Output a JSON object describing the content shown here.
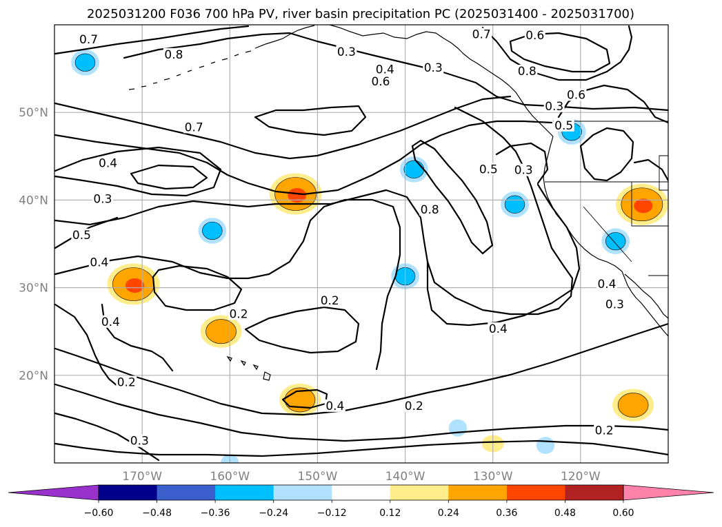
{
  "chart_data": {
    "type": "contour map",
    "title": "2025031200 F036 700 hPa PV, river basin precipitation PC (2025031400 - 2025031700)",
    "x_axis": {
      "unit": "longitude",
      "ticks": [
        -170,
        -160,
        -150,
        -140,
        -130,
        -120
      ],
      "tick_labels": [
        "170°W",
        "160°W",
        "150°W",
        "140°W",
        "130°W",
        "120°W"
      ],
      "range": [
        -180,
        -110
      ]
    },
    "y_axis": {
      "unit": "latitude",
      "ticks": [
        20,
        30,
        40,
        50
      ],
      "tick_labels": [
        "20°N",
        "30°N",
        "40°N",
        "50°N"
      ],
      "range": [
        10,
        60
      ]
    },
    "grid": true,
    "contour_levels": [
      0.2,
      0.3,
      0.4,
      0.5,
      0.6,
      0.7,
      0.8
    ],
    "contour_labels": [
      {
        "text": "0.7",
        "lon": -176.1,
        "lat": 58.1
      },
      {
        "text": "0.8",
        "lon": -166.4,
        "lat": 56.4
      },
      {
        "text": "0.3",
        "lon": -146.7,
        "lat": 56.7
      },
      {
        "text": "0.6",
        "lon": -142.8,
        "lat": 53.3
      },
      {
        "text": "0.4",
        "lon": -142.3,
        "lat": 54.7
      },
      {
        "text": "0.3",
        "lon": -136.8,
        "lat": 54.9
      },
      {
        "text": "0.7",
        "lon": -131.3,
        "lat": 58.7
      },
      {
        "text": "0.6",
        "lon": -125.2,
        "lat": 58.6
      },
      {
        "text": "0.8",
        "lon": -126.1,
        "lat": 54.5
      },
      {
        "text": "0.6",
        "lon": -120.5,
        "lat": 51.8
      },
      {
        "text": "0.5",
        "lon": -121.9,
        "lat": 48.3
      },
      {
        "text": "0.3",
        "lon": -123.0,
        "lat": 50.5
      },
      {
        "text": "0.7",
        "lon": -164.1,
        "lat": 48.1
      },
      {
        "text": "0.4",
        "lon": -173.9,
        "lat": 44.0
      },
      {
        "text": "0.3",
        "lon": -174.5,
        "lat": 39.9
      },
      {
        "text": "0.5",
        "lon": -176.9,
        "lat": 35.8
      },
      {
        "text": "0.4",
        "lon": -174.9,
        "lat": 32.7
      },
      {
        "text": "0.2",
        "lon": -171.8,
        "lat": 19.0
      },
      {
        "text": "0.4",
        "lon": -173.6,
        "lat": 25.9
      },
      {
        "text": "0.2",
        "lon": -159.0,
        "lat": 26.8
      },
      {
        "text": "0.2",
        "lon": -148.6,
        "lat": 28.3
      },
      {
        "text": "0.5",
        "lon": -130.5,
        "lat": 43.3
      },
      {
        "text": "0.3",
        "lon": -126.5,
        "lat": 43.2
      },
      {
        "text": "0.8",
        "lon": -137.2,
        "lat": 38.7
      },
      {
        "text": "0.4",
        "lon": -117.0,
        "lat": 30.2
      },
      {
        "text": "0.3",
        "lon": -116.1,
        "lat": 27.9
      },
      {
        "text": "0.4",
        "lon": -129.4,
        "lat": 25.1
      },
      {
        "text": "0.4",
        "lon": -148.0,
        "lat": 16.3
      },
      {
        "text": "0.2",
        "lon": -139.0,
        "lat": 16.3
      },
      {
        "text": "0.2",
        "lon": -117.3,
        "lat": 13.5
      },
      {
        "text": "0.3",
        "lon": -170.3,
        "lat": 12.3
      }
    ],
    "shaded_regions": [
      {
        "sign": "positive",
        "peak": "0.36-0.48",
        "lon": -152.5,
        "lat": 40.7
      },
      {
        "sign": "positive",
        "peak": "0.36-0.48",
        "lon": -113.0,
        "lat": 39.5
      },
      {
        "sign": "positive",
        "peak": "0.36-0.48",
        "lon": -171.0,
        "lat": 30.4
      },
      {
        "sign": "positive",
        "peak": "0.24-0.36",
        "lon": -161.0,
        "lat": 25.0
      },
      {
        "sign": "positive",
        "peak": "0.24-0.36",
        "lon": -152.0,
        "lat": 17.2
      },
      {
        "sign": "positive",
        "peak": "0.24-0.36",
        "lon": -114.0,
        "lat": 16.6
      },
      {
        "sign": "positive",
        "peak": "0.12-0.24",
        "lon": -130.0,
        "lat": 12.2
      },
      {
        "sign": "negative",
        "peak": "-0.36--0.24",
        "lon": -162.0,
        "lat": 36.5
      },
      {
        "sign": "negative",
        "peak": "-0.36--0.24",
        "lon": -176.5,
        "lat": 55.7
      },
      {
        "sign": "negative",
        "peak": "-0.36--0.24",
        "lon": -139.0,
        "lat": 43.5
      },
      {
        "sign": "negative",
        "peak": "-0.36--0.24",
        "lon": -127.5,
        "lat": 39.5
      },
      {
        "sign": "negative",
        "peak": "-0.36--0.24",
        "lon": -140.0,
        "lat": 31.3
      },
      {
        "sign": "negative",
        "peak": "-0.36--0.24",
        "lon": -121.0,
        "lat": 47.8
      },
      {
        "sign": "negative",
        "peak": "-0.36--0.24",
        "lon": -116.0,
        "lat": 35.3
      },
      {
        "sign": "negative",
        "peak": "-0.24--0.12",
        "lon": -134.0,
        "lat": 14.0
      },
      {
        "sign": "negative",
        "peak": "-0.24--0.12",
        "lon": -124.0,
        "lat": 12.0
      },
      {
        "sign": "negative",
        "peak": "-0.24--0.12",
        "lon": -160.0,
        "lat": 10.0
      }
    ],
    "colorbar": {
      "orientation": "horizontal",
      "extend": "both",
      "boundaries": [
        -0.6,
        -0.48,
        -0.36,
        -0.24,
        -0.12,
        0.12,
        0.24,
        0.36,
        0.48,
        0.6
      ],
      "tick_labels": [
        "−0.60",
        "−0.48",
        "−0.36",
        "−0.24",
        "−0.12",
        "0.12",
        "0.24",
        "0.36",
        "0.48",
        "0.60"
      ],
      "colors": [
        "#9932cc",
        "#00008b",
        "#3a5fcd",
        "#00bfff",
        "#b0e2ff",
        "#ffffff",
        "#ffec8b",
        "#ffa500",
        "#ff4500",
        "#b22222",
        "#ff82ab"
      ]
    }
  }
}
